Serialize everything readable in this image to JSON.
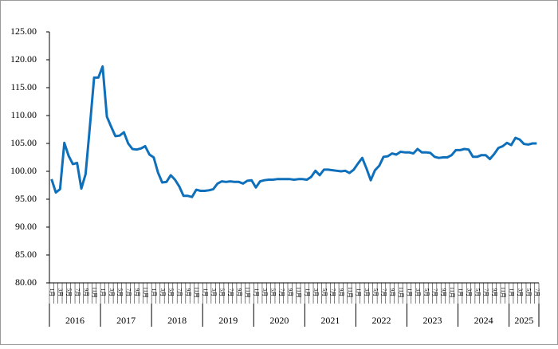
{
  "chart_data": {
    "type": "line",
    "categories": [
      "1月",
      null,
      "3月",
      null,
      "5月",
      null,
      "7月",
      null,
      "9月",
      null,
      "11月",
      null,
      "1月",
      null,
      "3月",
      null,
      "5月",
      null,
      "7月",
      null,
      "9月",
      null,
      "11月",
      null,
      "1月",
      null,
      "3月",
      null,
      "5月",
      null,
      "7月",
      null,
      "9月",
      null,
      "11月",
      null,
      "1月",
      null,
      "3月",
      null,
      "5月",
      null,
      "7月",
      null,
      "9月",
      null,
      "11月",
      null,
      "1月",
      null,
      "3月",
      null,
      "5月",
      null,
      "7月",
      null,
      "9月",
      null,
      "11月",
      null,
      "1月",
      null,
      "3月",
      null,
      "5月",
      null,
      "7月",
      null,
      "9月",
      null,
      "11月",
      null,
      "1月",
      null,
      "3月",
      null,
      "5月",
      null,
      "7月",
      null,
      "9月",
      null,
      "11月",
      null,
      "1月",
      null,
      "3月",
      null,
      "5月",
      null,
      "7月",
      null,
      "9月",
      null,
      "11月",
      null,
      "1月",
      null,
      "3月",
      null,
      "5月",
      null,
      "7月",
      null,
      "9月",
      null,
      "11月",
      null,
      "1月",
      null,
      "3月",
      null,
      "5月",
      null,
      "7月"
    ],
    "years": [
      "2016",
      "2017",
      "2018",
      "2019",
      "2020",
      "2021",
      "2022",
      "2023",
      "2024",
      "2025"
    ],
    "series": [
      {
        "color": "#0e6fba",
        "values": [
          98.6,
          96.2,
          96.8,
          105.1,
          102.8,
          101.3,
          101.5,
          96.9,
          99.5,
          108.0,
          116.8,
          116.8,
          118.8,
          109.8,
          108.0,
          106.3,
          106.4,
          107.0,
          105.0,
          104.0,
          103.9,
          104.1,
          104.5,
          103.0,
          102.5,
          99.8,
          98.0,
          98.1,
          99.3,
          98.5,
          97.3,
          95.6,
          95.6,
          95.4,
          96.7,
          96.5,
          96.5,
          96.6,
          96.8,
          97.8,
          98.2,
          98.1,
          98.2,
          98.1,
          98.1,
          97.8,
          98.3,
          98.4,
          97.1,
          98.2,
          98.4,
          98.5,
          98.5,
          98.6,
          98.6,
          98.6,
          98.6,
          98.5,
          98.6,
          98.6,
          98.5,
          99.0,
          100.1,
          99.3,
          100.3,
          100.3,
          100.2,
          100.1,
          100.0,
          100.1,
          99.7,
          100.3,
          101.4,
          102.4,
          100.5,
          98.4,
          100.2,
          101.0,
          102.6,
          102.7,
          103.2,
          103.0,
          103.5,
          103.4,
          103.4,
          103.2,
          104.0,
          103.4,
          103.4,
          103.3,
          102.6,
          102.4,
          102.5,
          102.5,
          102.9,
          103.8,
          103.8,
          104.0,
          103.9,
          102.6,
          102.6,
          102.9,
          102.9,
          102.2,
          103.1,
          104.2,
          104.5,
          105.1,
          104.7,
          106.0,
          105.7,
          104.9,
          104.8,
          105.0,
          105.0
        ]
      }
    ],
    "ylim": [
      80,
      125
    ],
    "yticks": [
      {
        "value": 80,
        "label": "80.00"
      },
      {
        "value": 85,
        "label": "85.00"
      },
      {
        "value": 90,
        "label": "90.00"
      },
      {
        "value": 95,
        "label": "95.00"
      },
      {
        "value": 100,
        "label": "100.00"
      },
      {
        "value": 105,
        "label": "105.00"
      },
      {
        "value": 110,
        "label": "110.00"
      },
      {
        "value": 115,
        "label": "115.00"
      },
      {
        "value": 120,
        "label": "120.00"
      },
      {
        "value": 125,
        "label": "125.00"
      }
    ],
    "grid": false
  }
}
